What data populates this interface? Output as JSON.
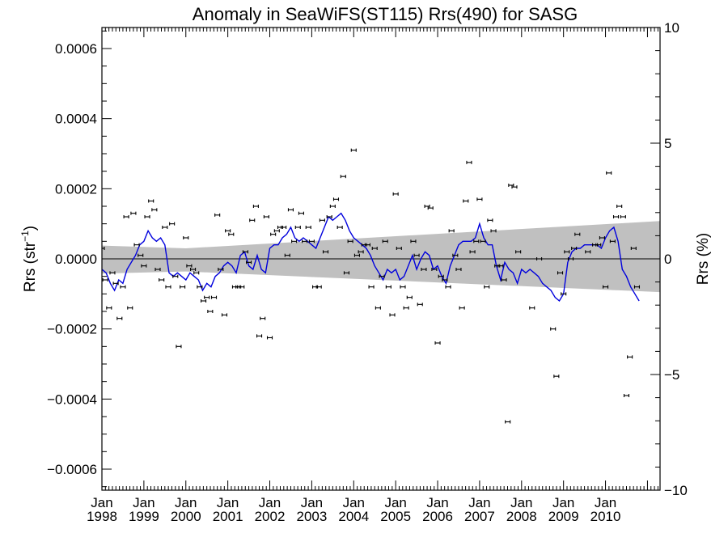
{
  "chart_data": {
    "type": "scatter",
    "title": "Anomaly in SeaWiFS(ST115) Rrs(490) for SASG",
    "ylabel_left_main": "Rrs (str",
    "ylabel_left_sup": "−1",
    "ylabel_left_close": ")",
    "ylabel_right": "Rrs (%)",
    "x_unit": "decimal year",
    "xlim": [
      1998.0,
      2011.3
    ],
    "ylim_left": [
      -0.00066,
      0.00066
    ],
    "ylim_right": [
      -10,
      10
    ],
    "grid": false,
    "xtick_month": "Jan",
    "xticks": [
      {
        "value": 1998,
        "label": "1998"
      },
      {
        "value": 1999,
        "label": "1999"
      },
      {
        "value": 2000,
        "label": "2000"
      },
      {
        "value": 2001,
        "label": "2001"
      },
      {
        "value": 2002,
        "label": "2002"
      },
      {
        "value": 2003,
        "label": "2003"
      },
      {
        "value": 2004,
        "label": "2004"
      },
      {
        "value": 2005,
        "label": "2005"
      },
      {
        "value": 2006,
        "label": "2006"
      },
      {
        "value": 2007,
        "label": "2007"
      },
      {
        "value": 2008,
        "label": "2008"
      },
      {
        "value": 2009,
        "label": "2009"
      },
      {
        "value": 2010,
        "label": "2010"
      }
    ],
    "yticks_left": [
      {
        "value": 0.0006,
        "label": "0.0006"
      },
      {
        "value": 0.0004,
        "label": "0.0004"
      },
      {
        "value": 0.0002,
        "label": "0.0002"
      },
      {
        "value": 0.0,
        "label": "0.0000"
      },
      {
        "value": -0.0002,
        "label": "−0.0002"
      },
      {
        "value": -0.0004,
        "label": "−0.0004"
      },
      {
        "value": -0.0006,
        "label": "−0.0006"
      }
    ],
    "yticks_right": [
      {
        "value": 10,
        "label": "10"
      },
      {
        "value": 5,
        "label": "5"
      },
      {
        "value": 0,
        "label": "0"
      },
      {
        "value": -5,
        "label": "−5"
      },
      {
        "value": -10,
        "label": "−10"
      }
    ],
    "colors": {
      "band": "#c0c0c0",
      "line": "#0000dd",
      "points": "#000000",
      "zero": "#000000"
    },
    "band": {
      "x": [
        1998.0,
        2000.0,
        2011.3
      ],
      "upper": [
        3.8e-05,
        3e-05,
        0.000108
      ],
      "lower": [
        -4.2e-05,
        -3.6e-05,
        -9.5e-05
      ]
    },
    "points": [
      {
        "x": 1998.0,
        "y": 3e-05
      },
      {
        "x": 1998.08,
        "y": -6e-05
      },
      {
        "x": 1998.17,
        "y": -0.00014
      },
      {
        "x": 1998.25,
        "y": -4e-05
      },
      {
        "x": 1998.33,
        "y": -7e-05
      },
      {
        "x": 1998.42,
        "y": -0.00017
      },
      {
        "x": 1998.5,
        "y": -8e-05
      },
      {
        "x": 1998.58,
        "y": 0.00012
      },
      {
        "x": 1998.67,
        "y": -0.00014
      },
      {
        "x": 1998.75,
        "y": 0.00013
      },
      {
        "x": 1998.83,
        "y": 4e-05
      },
      {
        "x": 1998.92,
        "y": 1e-05
      },
      {
        "x": 1999.0,
        "y": -2e-05
      },
      {
        "x": 1999.08,
        "y": 0.00012
      },
      {
        "x": 1999.17,
        "y": 0.000165
      },
      {
        "x": 1999.25,
        "y": 0.00014
      },
      {
        "x": 1999.33,
        "y": -3e-05
      },
      {
        "x": 1999.42,
        "y": -6e-05
      },
      {
        "x": 1999.5,
        "y": 9e-05
      },
      {
        "x": 1999.58,
        "y": -8e-05
      },
      {
        "x": 1999.67,
        "y": 0.0001
      },
      {
        "x": 1999.75,
        "y": -5e-05
      },
      {
        "x": 1999.83,
        "y": -0.00025
      },
      {
        "x": 1999.92,
        "y": -8e-05
      },
      {
        "x": 2000.0,
        "y": 6e-05
      },
      {
        "x": 2000.08,
        "y": -2e-05
      },
      {
        "x": 2000.17,
        "y": -3e-05
      },
      {
        "x": 2000.25,
        "y": -4e-05
      },
      {
        "x": 2000.33,
        "y": -8e-05
      },
      {
        "x": 2000.42,
        "y": -0.00012
      },
      {
        "x": 2000.5,
        "y": -0.00011
      },
      {
        "x": 2000.58,
        "y": -0.00015
      },
      {
        "x": 2000.67,
        "y": -0.00011
      },
      {
        "x": 2000.75,
        "y": 0.000125
      },
      {
        "x": 2000.83,
        "y": -3e-05
      },
      {
        "x": 2000.92,
        "y": -0.00016
      },
      {
        "x": 2001.0,
        "y": 8e-05
      },
      {
        "x": 2001.08,
        "y": 7e-05
      },
      {
        "x": 2001.17,
        "y": -8e-05
      },
      {
        "x": 2001.25,
        "y": -8e-05
      },
      {
        "x": 2001.33,
        "y": -8e-05
      },
      {
        "x": 2001.42,
        "y": 2e-05
      },
      {
        "x": 2001.5,
        "y": -1e-05
      },
      {
        "x": 2001.58,
        "y": 0.00011
      },
      {
        "x": 2001.67,
        "y": 0.00015
      },
      {
        "x": 2001.75,
        "y": -0.00022
      },
      {
        "x": 2001.83,
        "y": -0.00017
      },
      {
        "x": 2001.92,
        "y": 0.00012
      },
      {
        "x": 2002.0,
        "y": -0.000225
      },
      {
        "x": 2002.08,
        "y": 7e-05
      },
      {
        "x": 2002.17,
        "y": 8e-05
      },
      {
        "x": 2002.25,
        "y": 9e-05
      },
      {
        "x": 2002.33,
        "y": 9e-05
      },
      {
        "x": 2002.42,
        "y": 1e-05
      },
      {
        "x": 2002.5,
        "y": 0.00014
      },
      {
        "x": 2002.58,
        "y": 5e-05
      },
      {
        "x": 2002.67,
        "y": 9e-05
      },
      {
        "x": 2002.75,
        "y": 0.00013
      },
      {
        "x": 2002.83,
        "y": 5e-05
      },
      {
        "x": 2002.92,
        "y": 9e-05
      },
      {
        "x": 2003.0,
        "y": 5e-05
      },
      {
        "x": 2003.08,
        "y": -8e-05
      },
      {
        "x": 2003.17,
        "y": -8e-05
      },
      {
        "x": 2003.25,
        "y": 0.00011
      },
      {
        "x": 2003.33,
        "y": 2e-05
      },
      {
        "x": 2003.42,
        "y": 0.00012
      },
      {
        "x": 2003.5,
        "y": 0.00015
      },
      {
        "x": 2003.58,
        "y": 0.00017
      },
      {
        "x": 2003.67,
        "y": 9e-05
      },
      {
        "x": 2003.75,
        "y": 0.000235
      },
      {
        "x": 2003.83,
        "y": -4e-05
      },
      {
        "x": 2003.92,
        "y": 5e-05
      },
      {
        "x": 2004.0,
        "y": 0.00031
      },
      {
        "x": 2004.08,
        "y": 1e-05
      },
      {
        "x": 2004.17,
        "y": 2e-05
      },
      {
        "x": 2004.25,
        "y": 4e-05
      },
      {
        "x": 2004.33,
        "y": 4e-05
      },
      {
        "x": 2004.42,
        "y": -8e-05
      },
      {
        "x": 2004.5,
        "y": 3e-05
      },
      {
        "x": 2004.58,
        "y": -0.00014
      },
      {
        "x": 2004.67,
        "y": -5e-05
      },
      {
        "x": 2004.75,
        "y": 5e-05
      },
      {
        "x": 2004.83,
        "y": -8e-05
      },
      {
        "x": 2004.92,
        "y": -0.00016
      },
      {
        "x": 2005.0,
        "y": 0.000185
      },
      {
        "x": 2005.08,
        "y": 3e-05
      },
      {
        "x": 2005.17,
        "y": -8e-05
      },
      {
        "x": 2005.25,
        "y": -0.00014
      },
      {
        "x": 2005.33,
        "y": -0.00011
      },
      {
        "x": 2005.42,
        "y": 5e-05
      },
      {
        "x": 2005.5,
        "y": 1e-05
      },
      {
        "x": 2005.58,
        "y": -0.00013
      },
      {
        "x": 2005.67,
        "y": -3e-05
      },
      {
        "x": 2005.75,
        "y": 0.00015
      },
      {
        "x": 2005.83,
        "y": 0.000145
      },
      {
        "x": 2005.92,
        "y": -3e-05
      },
      {
        "x": 2006.0,
        "y": -0.00024
      },
      {
        "x": 2006.08,
        "y": -5e-05
      },
      {
        "x": 2006.17,
        "y": -6e-05
      },
      {
        "x": 2006.25,
        "y": -8e-05
      },
      {
        "x": 2006.33,
        "y": 8e-05
      },
      {
        "x": 2006.42,
        "y": 1e-05
      },
      {
        "x": 2006.5,
        "y": -3e-05
      },
      {
        "x": 2006.58,
        "y": -0.00014
      },
      {
        "x": 2006.67,
        "y": 0.000165
      },
      {
        "x": 2006.75,
        "y": 0.000275
      },
      {
        "x": 2006.83,
        "y": 2e-05
      },
      {
        "x": 2006.92,
        "y": 5e-05
      },
      {
        "x": 2007.0,
        "y": 0.00017
      },
      {
        "x": 2007.08,
        "y": 5e-05
      },
      {
        "x": 2007.17,
        "y": -8e-05
      },
      {
        "x": 2007.25,
        "y": 0.00011
      },
      {
        "x": 2007.33,
        "y": 8e-05
      },
      {
        "x": 2007.42,
        "y": -2e-05
      },
      {
        "x": 2007.5,
        "y": -2e-05
      },
      {
        "x": 2007.58,
        "y": -6e-05
      },
      {
        "x": 2007.67,
        "y": -0.000465
      },
      {
        "x": 2007.75,
        "y": 0.00021
      },
      {
        "x": 2007.83,
        "y": 0.000205
      },
      {
        "x": 2007.92,
        "y": 2e-05
      },
      {
        "x": 2008.25,
        "y": -0.00014
      },
      {
        "x": 2008.42,
        "y": 0.0
      },
      {
        "x": 2008.75,
        "y": -0.0002
      },
      {
        "x": 2008.83,
        "y": -0.000335
      },
      {
        "x": 2008.92,
        "y": -4e-05
      },
      {
        "x": 2009.0,
        "y": -0.0001
      },
      {
        "x": 2009.08,
        "y": 2e-05
      },
      {
        "x": 2009.17,
        "y": 0.0
      },
      {
        "x": 2009.25,
        "y": 3e-05
      },
      {
        "x": 2009.33,
        "y": 7e-05
      },
      {
        "x": 2009.58,
        "y": 2e-05
      },
      {
        "x": 2009.75,
        "y": 4e-05
      },
      {
        "x": 2009.83,
        "y": 4e-05
      },
      {
        "x": 2009.92,
        "y": 6e-05
      },
      {
        "x": 2010.0,
        "y": -8e-05
      },
      {
        "x": 2010.08,
        "y": 0.000245
      },
      {
        "x": 2010.17,
        "y": 5e-05
      },
      {
        "x": 2010.25,
        "y": 0.00012
      },
      {
        "x": 2010.33,
        "y": 0.00015
      },
      {
        "x": 2010.42,
        "y": 0.00012
      },
      {
        "x": 2010.5,
        "y": -0.00039
      },
      {
        "x": 2010.58,
        "y": -0.00028
      },
      {
        "x": 2010.67,
        "y": 3e-05
      },
      {
        "x": 2010.75,
        "y": -8e-05
      }
    ],
    "line": [
      {
        "x": 1998.0,
        "y": -3e-05
      },
      {
        "x": 1998.1,
        "y": -4e-05
      },
      {
        "x": 1998.2,
        "y": -7e-05
      },
      {
        "x": 1998.3,
        "y": -9e-05
      },
      {
        "x": 1998.4,
        "y": -6e-05
      },
      {
        "x": 1998.5,
        "y": -7e-05
      },
      {
        "x": 1998.6,
        "y": -3e-05
      },
      {
        "x": 1998.7,
        "y": -1e-05
      },
      {
        "x": 1998.8,
        "y": 1e-05
      },
      {
        "x": 1998.9,
        "y": 4e-05
      },
      {
        "x": 1999.0,
        "y": 5e-05
      },
      {
        "x": 1999.1,
        "y": 8e-05
      },
      {
        "x": 1999.2,
        "y": 6e-05
      },
      {
        "x": 1999.3,
        "y": 5e-05
      },
      {
        "x": 1999.4,
        "y": 6e-05
      },
      {
        "x": 1999.5,
        "y": 4e-05
      },
      {
        "x": 1999.6,
        "y": -4e-05
      },
      {
        "x": 1999.7,
        "y": -5e-05
      },
      {
        "x": 1999.8,
        "y": -4e-05
      },
      {
        "x": 1999.9,
        "y": -5e-05
      },
      {
        "x": 2000.0,
        "y": -6e-05
      },
      {
        "x": 2000.1,
        "y": -4e-05
      },
      {
        "x": 2000.2,
        "y": -5e-05
      },
      {
        "x": 2000.3,
        "y": -6e-05
      },
      {
        "x": 2000.4,
        "y": -9e-05
      },
      {
        "x": 2000.5,
        "y": -7e-05
      },
      {
        "x": 2000.6,
        "y": -8e-05
      },
      {
        "x": 2000.7,
        "y": -5e-05
      },
      {
        "x": 2000.8,
        "y": -4e-05
      },
      {
        "x": 2000.9,
        "y": -2e-05
      },
      {
        "x": 2001.0,
        "y": -1e-05
      },
      {
        "x": 2001.1,
        "y": -2e-05
      },
      {
        "x": 2001.2,
        "y": -4e-05
      },
      {
        "x": 2001.3,
        "y": 1e-05
      },
      {
        "x": 2001.4,
        "y": 2e-05
      },
      {
        "x": 2001.5,
        "y": -2e-05
      },
      {
        "x": 2001.6,
        "y": -3e-05
      },
      {
        "x": 2001.7,
        "y": 1e-05
      },
      {
        "x": 2001.8,
        "y": -3e-05
      },
      {
        "x": 2001.9,
        "y": -4e-05
      },
      {
        "x": 2002.0,
        "y": 3e-05
      },
      {
        "x": 2002.1,
        "y": 4e-05
      },
      {
        "x": 2002.2,
        "y": 4e-05
      },
      {
        "x": 2002.3,
        "y": 6e-05
      },
      {
        "x": 2002.4,
        "y": 7e-05
      },
      {
        "x": 2002.5,
        "y": 9e-05
      },
      {
        "x": 2002.6,
        "y": 6e-05
      },
      {
        "x": 2002.7,
        "y": 5e-05
      },
      {
        "x": 2002.8,
        "y": 6e-05
      },
      {
        "x": 2002.9,
        "y": 5e-05
      },
      {
        "x": 2003.0,
        "y": 4e-05
      },
      {
        "x": 2003.1,
        "y": 3e-05
      },
      {
        "x": 2003.2,
        "y": 6e-05
      },
      {
        "x": 2003.3,
        "y": 9e-05
      },
      {
        "x": 2003.4,
        "y": 0.00012
      },
      {
        "x": 2003.5,
        "y": 0.00011
      },
      {
        "x": 2003.6,
        "y": 0.00012
      },
      {
        "x": 2003.7,
        "y": 0.00013
      },
      {
        "x": 2003.8,
        "y": 0.00011
      },
      {
        "x": 2003.9,
        "y": 8e-05
      },
      {
        "x": 2004.0,
        "y": 6e-05
      },
      {
        "x": 2004.1,
        "y": 5e-05
      },
      {
        "x": 2004.2,
        "y": 4e-05
      },
      {
        "x": 2004.3,
        "y": 3e-05
      },
      {
        "x": 2004.4,
        "y": 1e-05
      },
      {
        "x": 2004.5,
        "y": -2e-05
      },
      {
        "x": 2004.6,
        "y": -4e-05
      },
      {
        "x": 2004.7,
        "y": -6e-05
      },
      {
        "x": 2004.8,
        "y": -3e-05
      },
      {
        "x": 2004.9,
        "y": -4e-05
      },
      {
        "x": 2005.0,
        "y": -3e-05
      },
      {
        "x": 2005.1,
        "y": -6e-05
      },
      {
        "x": 2005.2,
        "y": -5e-05
      },
      {
        "x": 2005.3,
        "y": -2e-05
      },
      {
        "x": 2005.4,
        "y": 1e-05
      },
      {
        "x": 2005.5,
        "y": -3e-05
      },
      {
        "x": 2005.6,
        "y": 0.0
      },
      {
        "x": 2005.7,
        "y": 2e-05
      },
      {
        "x": 2005.8,
        "y": 1e-05
      },
      {
        "x": 2005.9,
        "y": -3e-05
      },
      {
        "x": 2006.0,
        "y": -2e-05
      },
      {
        "x": 2006.1,
        "y": -5e-05
      },
      {
        "x": 2006.2,
        "y": -7e-05
      },
      {
        "x": 2006.3,
        "y": -2e-05
      },
      {
        "x": 2006.4,
        "y": 1e-05
      },
      {
        "x": 2006.5,
        "y": 4e-05
      },
      {
        "x": 2006.6,
        "y": 5e-05
      },
      {
        "x": 2006.7,
        "y": 5e-05
      },
      {
        "x": 2006.8,
        "y": 5e-05
      },
      {
        "x": 2006.9,
        "y": 6e-05
      },
      {
        "x": 2007.0,
        "y": 0.0001
      },
      {
        "x": 2007.1,
        "y": 6e-05
      },
      {
        "x": 2007.2,
        "y": 4e-05
      },
      {
        "x": 2007.3,
        "y": 4e-05
      },
      {
        "x": 2007.4,
        "y": -2e-05
      },
      {
        "x": 2007.5,
        "y": -6e-05
      },
      {
        "x": 2007.6,
        "y": -1e-05
      },
      {
        "x": 2007.7,
        "y": -3e-05
      },
      {
        "x": 2007.8,
        "y": -4e-05
      },
      {
        "x": 2007.9,
        "y": -7e-05
      },
      {
        "x": 2008.0,
        "y": -3e-05
      },
      {
        "x": 2008.1,
        "y": -4e-05
      },
      {
        "x": 2008.2,
        "y": -3e-05
      },
      {
        "x": 2008.3,
        "y": -4e-05
      },
      {
        "x": 2008.4,
        "y": -5e-05
      },
      {
        "x": 2008.5,
        "y": -7e-05
      },
      {
        "x": 2008.6,
        "y": -8e-05
      },
      {
        "x": 2008.7,
        "y": -9e-05
      },
      {
        "x": 2008.8,
        "y": -0.00011
      },
      {
        "x": 2008.9,
        "y": -0.00012
      },
      {
        "x": 2009.0,
        "y": -0.0001
      },
      {
        "x": 2009.1,
        "y": -1e-05
      },
      {
        "x": 2009.2,
        "y": 2e-05
      },
      {
        "x": 2009.3,
        "y": 3e-05
      },
      {
        "x": 2009.4,
        "y": 3e-05
      },
      {
        "x": 2009.5,
        "y": 4e-05
      },
      {
        "x": 2009.6,
        "y": 4e-05
      },
      {
        "x": 2009.7,
        "y": 4e-05
      },
      {
        "x": 2009.8,
        "y": 4e-05
      },
      {
        "x": 2009.9,
        "y": 3e-05
      },
      {
        "x": 2010.0,
        "y": 6e-05
      },
      {
        "x": 2010.1,
        "y": 8e-05
      },
      {
        "x": 2010.2,
        "y": 9e-05
      },
      {
        "x": 2010.3,
        "y": 5e-05
      },
      {
        "x": 2010.4,
        "y": -3e-05
      },
      {
        "x": 2010.5,
        "y": -5e-05
      },
      {
        "x": 2010.6,
        "y": -8e-05
      },
      {
        "x": 2010.7,
        "y": -0.0001
      },
      {
        "x": 2010.8,
        "y": -0.00012
      }
    ]
  }
}
